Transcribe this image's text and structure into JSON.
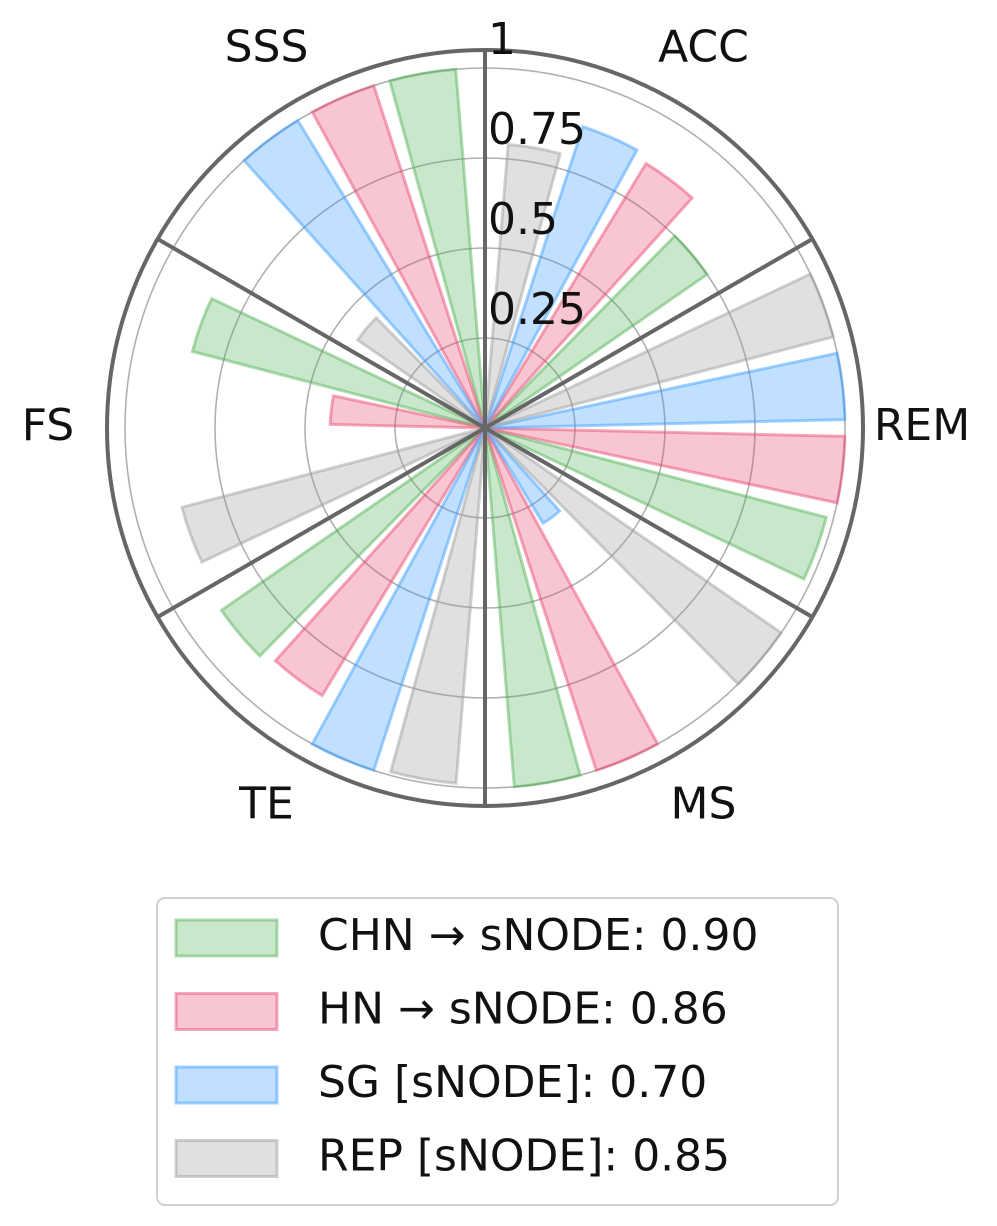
{
  "chart_data": {
    "type": "polar-bar",
    "categories": [
      "REM",
      "ACC",
      "SSS",
      "FS",
      "TE",
      "MS"
    ],
    "ylim": [
      0,
      1.05
    ],
    "yticks": [
      0.25,
      0.5,
      0.75,
      1.0
    ],
    "grid": true,
    "legend": "lower center",
    "series": [
      {
        "name": "CHN → sNODE:  0.90",
        "color": "#4caf50",
        "values": [
          0.98,
          0.75,
          1.0,
          0.84,
          0.89,
          1.0
        ]
      },
      {
        "name": "HN → sNODE:  0.86",
        "color": "#e8436a",
        "values": [
          1.0,
          0.86,
          1.0,
          0.43,
          0.87,
          1.0
        ]
      },
      {
        "name": "SG [sNODE]:  0.70",
        "color": "#3399ff",
        "values": [
          1.0,
          0.88,
          1.0,
          0,
          1.0,
          0.31
        ]
      },
      {
        "name": "REP [sNODE]:  0.85",
        "color": "#999999",
        "values": [
          1.0,
          0.79,
          0.43,
          0.87,
          0.99,
          1.0
        ]
      }
    ]
  }
}
